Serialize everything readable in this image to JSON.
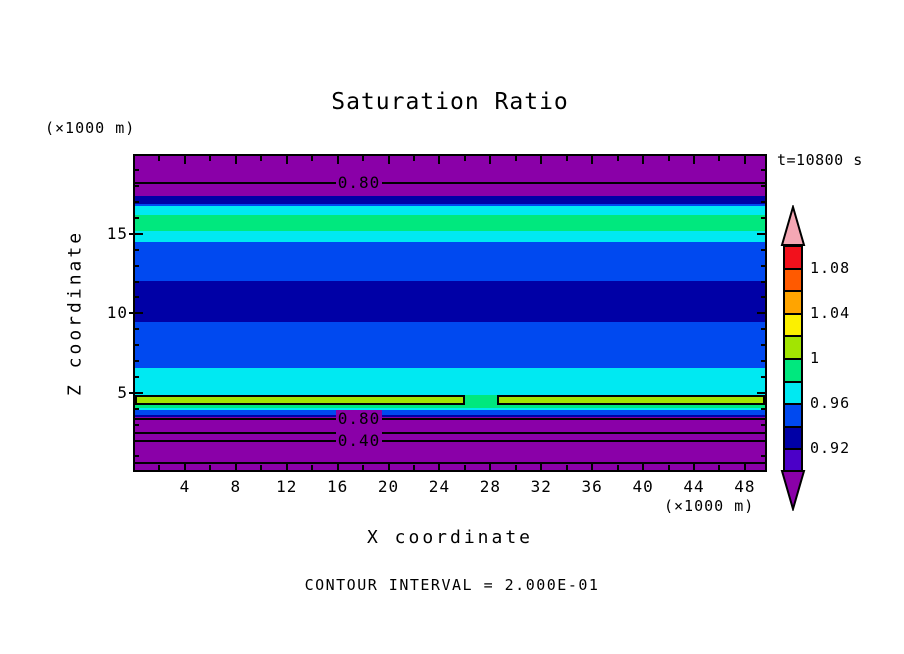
{
  "title": "Saturation Ratio",
  "timestamp": "t=10800 s",
  "footer": "CONTOUR INTERVAL = 2.000E-01",
  "x_axis": {
    "label": "X coordinate",
    "unit": "(×1000 m)"
  },
  "y_axis": {
    "label": "Z coordinate",
    "unit": "(×1000 m)"
  },
  "chart_data": {
    "type": "heatmap",
    "subtype": "filled-contour-cross-section",
    "title": "Saturation Ratio",
    "xlabel": "X coordinate",
    "ylabel": "Z coordinate",
    "x_unit_factor": "(×1000 m)",
    "y_unit_factor": "(×1000 m)",
    "time_annotation": "t=10800 s",
    "contour_interval": 0.2,
    "contour_interval_text": "CONTOUR INTERVAL = 2.000E-01",
    "xlim": [
      0,
      49.5
    ],
    "ylim": [
      0,
      19.9
    ],
    "x_major_ticks": [
      4,
      8,
      12,
      16,
      20,
      24,
      28,
      32,
      36,
      40,
      44,
      48
    ],
    "x_minor_step": 2,
    "y_major_ticks": [
      5,
      10,
      15
    ],
    "y_minor_step": 1,
    "grid": false,
    "palette": {
      "pink": "#F4A7B4",
      "red": "#F2111C",
      "orangered": "#FF5A00",
      "orange": "#FFA400",
      "yellow": "#FCF000",
      "greenyellow": "#A2E402",
      "springgreen": "#00E87E",
      "cyan": "#00E9F2",
      "blue": "#0049F0",
      "navy": "#0000A6",
      "violet": "#4B00C8",
      "purple": "#8A00A8"
    },
    "bands": [
      {
        "z_from": 17.35,
        "z_to": 19.9,
        "color": "purple",
        "sr": "< 0.90"
      },
      {
        "z_from": 16.9,
        "z_to": 17.35,
        "color": "navy",
        "sr": "0.92-0.94"
      },
      {
        "z_from": 16.75,
        "z_to": 16.9,
        "color": "blue",
        "sr": "0.94-0.96"
      },
      {
        "z_from": 16.2,
        "z_to": 16.75,
        "color": "cyan",
        "sr": "0.96-0.98"
      },
      {
        "z_from": 15.17,
        "z_to": 16.2,
        "color": "springgreen",
        "sr": "0.98-1.00"
      },
      {
        "z_from": 14.5,
        "z_to": 15.17,
        "color": "cyan",
        "sr": "0.96-0.98"
      },
      {
        "z_from": 12.03,
        "z_to": 14.5,
        "color": "blue",
        "sr": "0.94-0.96"
      },
      {
        "z_from": 9.45,
        "z_to": 12.03,
        "color": "navy",
        "sr": "0.92-0.94"
      },
      {
        "z_from": 6.55,
        "z_to": 9.45,
        "color": "blue",
        "sr": "0.94-0.96"
      },
      {
        "z_from": 4.85,
        "z_to": 6.55,
        "color": "cyan",
        "sr": "0.96-0.98"
      },
      {
        "z_from": 4.05,
        "z_to": 4.85,
        "color": "springgreen",
        "sr": "0.98-1.00"
      },
      {
        "z_from": 3.9,
        "z_to": 4.05,
        "color": "cyan",
        "sr": "0.96-0.98"
      },
      {
        "z_from": 3.63,
        "z_to": 3.9,
        "color": "blue",
        "sr": "0.94-0.96"
      },
      {
        "z_from": 3.5,
        "z_to": 3.63,
        "color": "navy",
        "sr": "0.92-0.94"
      },
      {
        "z_from": 0,
        "z_to": 3.5,
        "color": "purple",
        "sr": "< 0.90"
      },
      {
        "z_from": 4.22,
        "z_to": 4.85,
        "color": "greenyellow",
        "sr": "1.00-1.02",
        "outlined": true,
        "outline_value": 1.0,
        "notch": {
          "x_from": 26.0,
          "x_to": 28.5,
          "shows_color": "springgreen"
        }
      }
    ],
    "contour_lines": [
      {
        "value": 0.8,
        "z": 18.2,
        "label": "0.80"
      },
      {
        "value": 0.8,
        "z": 3.35,
        "label": "0.80"
      },
      {
        "value": 0.6,
        "z": 2.5,
        "label": ""
      },
      {
        "value": 0.4,
        "z": 1.95,
        "label": "0.40"
      },
      {
        "value": 0.2,
        "z": 0.57,
        "label": ""
      }
    ],
    "colorbar": {
      "position": "right",
      "over_color": "pink",
      "under_color": "purple",
      "boxes": [
        {
          "color": "red",
          "from": 1.08,
          "to": 1.1
        },
        {
          "color": "orangered",
          "from": 1.06,
          "to": 1.08
        },
        {
          "color": "orange",
          "from": 1.04,
          "to": 1.06
        },
        {
          "color": "yellow",
          "from": 1.02,
          "to": 1.04
        },
        {
          "color": "greenyellow",
          "from": 1.0,
          "to": 1.02
        },
        {
          "color": "springgreen",
          "from": 0.98,
          "to": 1.0
        },
        {
          "color": "cyan",
          "from": 0.96,
          "to": 0.98
        },
        {
          "color": "blue",
          "from": 0.94,
          "to": 0.96
        },
        {
          "color": "navy",
          "from": 0.92,
          "to": 0.94
        },
        {
          "color": "violet",
          "from": 0.9,
          "to": 0.92
        }
      ],
      "labels": [
        {
          "text": "1.08",
          "value": 1.08
        },
        {
          "text": "1.04",
          "value": 1.04
        },
        {
          "text": "1",
          "value": 1.0
        },
        {
          "text": "0.96",
          "value": 0.96
        },
        {
          "text": "0.92",
          "value": 0.92
        }
      ]
    }
  }
}
